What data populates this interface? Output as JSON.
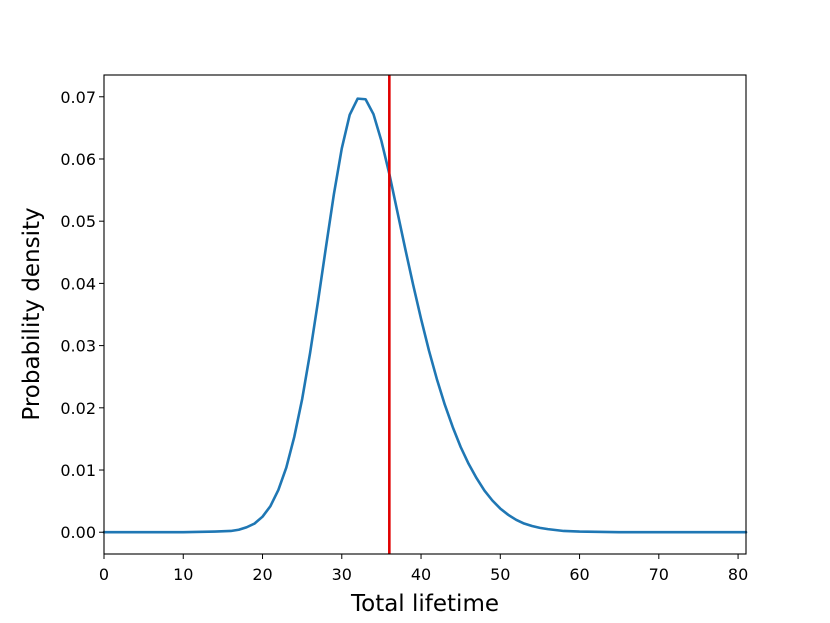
{
  "chart_data": {
    "type": "line",
    "title": "",
    "xlabel": "Total lifetime",
    "ylabel": "Probability density",
    "xlim": [
      0,
      81
    ],
    "ylim": [
      -0.0035,
      0.0735
    ],
    "xticks": [
      0,
      10,
      20,
      30,
      40,
      50,
      60,
      70,
      80
    ],
    "xtick_labels": [
      "0",
      "10",
      "20",
      "30",
      "40",
      "50",
      "60",
      "70",
      "80"
    ],
    "yticks": [
      0.0,
      0.01,
      0.02,
      0.03,
      0.04,
      0.05,
      0.06,
      0.07
    ],
    "ytick_labels": [
      "0.00",
      "0.01",
      "0.02",
      "0.03",
      "0.04",
      "0.05",
      "0.06",
      "0.07"
    ],
    "grid": false,
    "series": [
      {
        "color": "#1f77b4",
        "x": [
          0,
          5,
          10,
          14,
          16,
          17,
          18,
          19,
          20,
          21,
          22,
          23,
          24,
          25,
          26,
          27,
          28,
          29,
          30,
          31,
          32,
          33,
          34,
          35,
          36,
          37,
          38,
          39,
          40,
          41,
          42,
          43,
          44,
          45,
          46,
          47,
          48,
          49,
          50,
          51,
          52,
          53,
          54,
          55,
          56,
          58,
          60,
          65,
          70,
          75,
          81
        ],
        "y": [
          0.0,
          0.0,
          0.0,
          0.0001,
          0.0002,
          0.0004,
          0.0008,
          0.0014,
          0.0025,
          0.0042,
          0.0068,
          0.0104,
          0.0153,
          0.0214,
          0.0288,
          0.0371,
          0.0458,
          0.0543,
          0.0617,
          0.0671,
          0.0697,
          0.0696,
          0.0672,
          0.0629,
          0.0576,
          0.0516,
          0.0456,
          0.0398,
          0.0343,
          0.0292,
          0.0246,
          0.0205,
          0.0169,
          0.0137,
          0.011,
          0.0087,
          0.0067,
          0.0051,
          0.0038,
          0.0028,
          0.002,
          0.0014,
          0.001,
          0.0007,
          0.0005,
          0.0002,
          0.0001,
          0.0,
          0.0,
          0.0,
          0.0
        ]
      }
    ],
    "vline": {
      "x": 36,
      "color": "#e00000"
    }
  }
}
